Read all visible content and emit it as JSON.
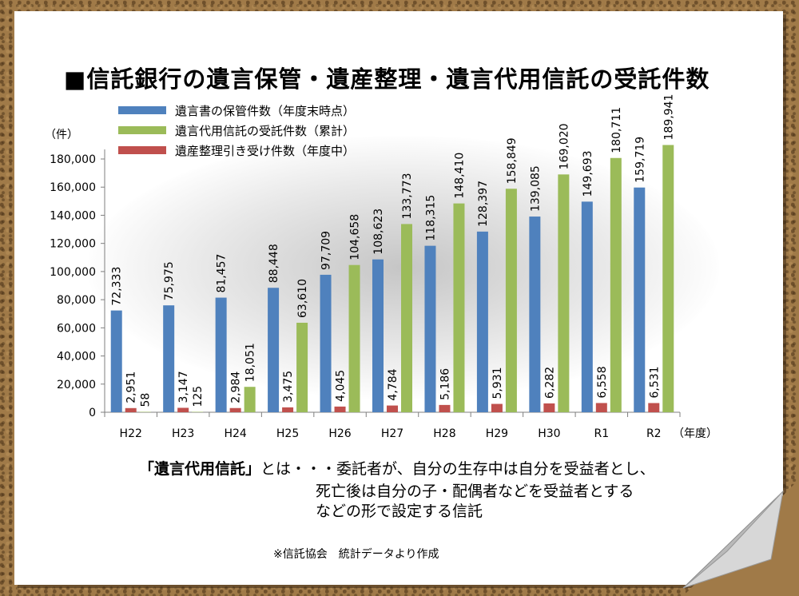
{
  "title": "■信託銀行の遺言保管・遺産整理・遺言代用信託の受託件数",
  "note": {
    "term": "「遺言代用信託」",
    "line1_rest": "とは・・・委託者が、自分の生存中は自分を受益者とし、",
    "line2": "死亡後は自分の子・配偶者などを受益者とする",
    "line3": "などの形で設定する信託"
  },
  "source": "※信託協会　統計データより作成",
  "chart_data": {
    "type": "bar",
    "title": "■信託銀行の遺言保管・遺産整理・遺言代用信託の受託件数",
    "ylabel": "（件）",
    "xlabel": "（年度）",
    "ylim": [
      0,
      180000
    ],
    "yticks": [
      "0",
      "20,000",
      "40,000",
      "60,000",
      "80,000",
      "100,000",
      "120,000",
      "140,000",
      "160,000",
      "180,000"
    ],
    "categories": [
      "H22",
      "H23",
      "H24",
      "H25",
      "H26",
      "H27",
      "H28",
      "H29",
      "H30",
      "R1",
      "R2"
    ],
    "legend_position": "top-left",
    "series": [
      {
        "name": "遺言書の保管件数（年度末時点）",
        "color": "#4f81bd",
        "values": [
          72333,
          75975,
          81457,
          88448,
          97709,
          108623,
          118315,
          128397,
          139085,
          149693,
          159719
        ],
        "labels": [
          "72,333",
          "75,975",
          "81,457",
          "88,448",
          "97,709",
          "108,623",
          "118,315",
          "128,397",
          "139,085",
          "149,693",
          "159,719"
        ]
      },
      {
        "name": "遺産整理引き受け件数（年度中）",
        "color": "#c0504d",
        "values": [
          2951,
          3147,
          2984,
          3475,
          4045,
          4784,
          5186,
          5931,
          6282,
          6558,
          6531
        ],
        "labels": [
          "2,951",
          "3,147",
          "2,984",
          "3,475",
          "4,045",
          "4,784",
          "5,186",
          "5,931",
          "6,282",
          "6,558",
          "6,531"
        ]
      },
      {
        "name": "遺言代用信託の受託件数（累計）",
        "color": "#9bbb59",
        "values": [
          58,
          125,
          18051,
          63610,
          104658,
          133773,
          148410,
          158849,
          169020,
          180711,
          189941
        ],
        "labels": [
          "58",
          "125",
          "18,051",
          "63,610",
          "104,658",
          "133,773",
          "148,410",
          "158,849",
          "169,020",
          "180,711",
          "189,941"
        ]
      }
    ],
    "legend_order": [
      0,
      2,
      1
    ]
  }
}
